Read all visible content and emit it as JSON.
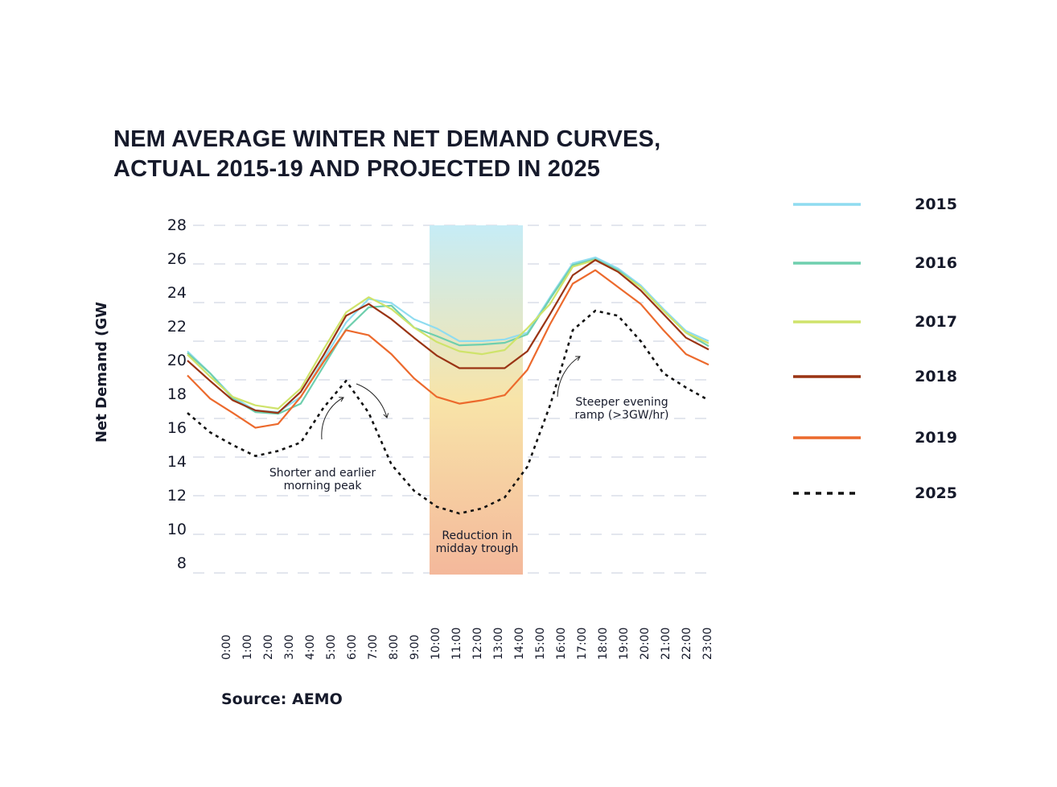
{
  "chart_data": {
    "type": "line",
    "title": [
      "NEM AVERAGE WINTER NET DEMAND CURVES,",
      "ACTUAL 2015-19 AND PROJECTED IN 2025"
    ],
    "ylabel": "Net Demand (GW",
    "xlabel": "",
    "ylim": [
      8,
      28
    ],
    "yticks": [
      "28",
      "26",
      "24",
      "22",
      "20",
      "18",
      "16",
      "14",
      "12",
      "10",
      "8"
    ],
    "categories": [
      "0:00",
      "1:00",
      "2:00",
      "3:00",
      "4:00",
      "5:00",
      "6:00",
      "7:00",
      "8:00",
      "9:00",
      "10:00",
      "11:00",
      "12:00",
      "13:00",
      "14:00",
      "15:00",
      "16:00",
      "17:00",
      "18:00",
      "19:00",
      "20:00",
      "21:00",
      "22:00",
      "23:00"
    ],
    "grid": true,
    "legend_position": "right",
    "series": [
      {
        "name": "2015",
        "color": "#8fdcf0",
        "style": "solid",
        "values": [
          20.5,
          19.2,
          17.8,
          17.0,
          16.9,
          17.8,
          20.0,
          22.2,
          23.6,
          23.35,
          22.4,
          21.85,
          21.1,
          21.1,
          21.2,
          21.6,
          23.7,
          25.7,
          26.05,
          25.4,
          24.4,
          23.0,
          21.7,
          21.1
        ]
      },
      {
        "name": "2016",
        "color": "#6fcfae",
        "style": "solid",
        "values": [
          20.4,
          19.2,
          17.7,
          16.9,
          16.8,
          17.4,
          19.6,
          21.8,
          23.1,
          23.2,
          21.9,
          21.4,
          20.85,
          20.9,
          21.0,
          21.5,
          23.6,
          25.6,
          25.95,
          25.3,
          24.3,
          22.9,
          21.6,
          20.8
        ]
      },
      {
        "name": "2017",
        "color": "#cfe36b",
        "style": "solid",
        "values": [
          20.3,
          19.0,
          17.8,
          17.3,
          17.1,
          18.3,
          20.6,
          22.8,
          23.7,
          23.0,
          21.9,
          21.05,
          20.5,
          20.33,
          20.57,
          21.86,
          23.3,
          25.5,
          25.9,
          25.2,
          24.3,
          22.9,
          21.6,
          20.97
        ]
      },
      {
        "name": "2018",
        "color": "#9a3414",
        "style": "solid",
        "values": [
          19.95,
          18.75,
          17.6,
          17.0,
          16.85,
          18.1,
          20.25,
          22.6,
          23.3,
          22.4,
          21.3,
          20.25,
          19.5,
          19.5,
          19.5,
          20.5,
          22.7,
          25.0,
          25.9,
          25.2,
          24.1,
          22.7,
          21.3,
          20.6
        ]
      },
      {
        "name": "2019",
        "color": "#ec6a2d",
        "style": "solid",
        "values": [
          19.07,
          17.7,
          16.85,
          15.97,
          16.2,
          17.8,
          19.85,
          21.75,
          21.45,
          20.33,
          18.9,
          17.8,
          17.4,
          17.6,
          17.9,
          19.4,
          22.1,
          24.5,
          25.3,
          24.3,
          23.3,
          21.75,
          20.33,
          19.7
        ]
      },
      {
        "name": "2025",
        "color": "#111111",
        "style": "dotted",
        "values": [
          16.85,
          15.7,
          14.95,
          14.3,
          14.6,
          15.1,
          17.15,
          18.75,
          16.85,
          13.8,
          12.25,
          11.3,
          10.9,
          11.2,
          11.85,
          13.67,
          17.3,
          21.75,
          22.9,
          22.6,
          21.1,
          19.2,
          18.35,
          17.6
        ]
      }
    ],
    "highlight_band": {
      "from": "10:00",
      "to": "14:00",
      "colors": [
        "#c6ecf6",
        "#f8e4a8",
        "#f4b89b"
      ]
    },
    "annotations": [
      {
        "lines": [
          "Shorter and earlier",
          "morning peak"
        ]
      },
      {
        "lines": [
          "Reduction in",
          "midday trough"
        ]
      },
      {
        "lines": [
          "Steeper evening",
          "ramp (>3GW/hr)"
        ]
      }
    ],
    "source": "Source: AEMO"
  }
}
